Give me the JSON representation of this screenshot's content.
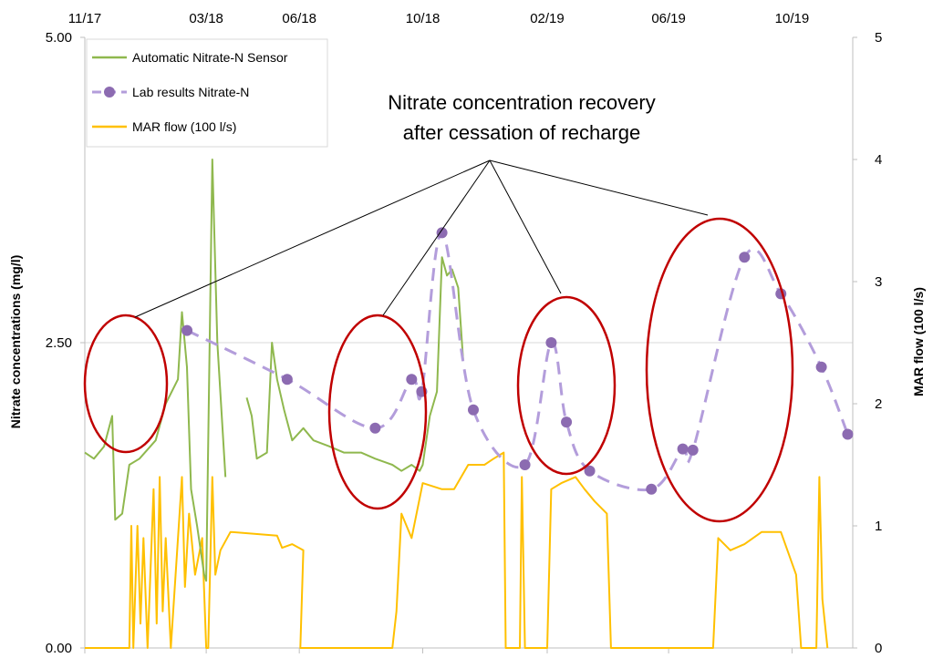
{
  "chart_data": {
    "type": "line",
    "x_axis": {
      "position": "top",
      "scale": "time",
      "range": [
        "2017-11-01",
        "2019-11-30"
      ],
      "tick_labels": [
        {
          "date": "2017-11-01",
          "label": "11/17"
        },
        {
          "date": "2018-03-01",
          "label": "03/18"
        },
        {
          "date": "2018-06-01",
          "label": "06/18"
        },
        {
          "date": "2018-10-01",
          "label": "10/18"
        },
        {
          "date": "2019-02-01",
          "label": "02/19"
        },
        {
          "date": "2019-06-01",
          "label": "06/19"
        },
        {
          "date": "2019-10-01",
          "label": "10/19"
        }
      ]
    },
    "y_left": {
      "label": "Nitrate concentrations (mg/l)",
      "range": [
        0,
        5
      ],
      "ticks": [
        0,
        2.5,
        5
      ],
      "tick_labels": [
        "0.00",
        "2.50",
        "5.00"
      ]
    },
    "y_right": {
      "label": "MAR flow (100 l/s)",
      "range": [
        0,
        5
      ],
      "ticks": [
        0,
        1,
        2,
        3,
        4,
        5
      ],
      "tick_labels": [
        "0",
        "1",
        "2",
        "3",
        "4",
        "5"
      ]
    },
    "gridlines": [
      2.5
    ],
    "legend": {
      "position": "top-left",
      "entries": [
        {
          "label": "Automatic Nitrate-N Sensor",
          "color": "#8fb84e",
          "style": "line"
        },
        {
          "label": "Lab results Nitrate-N",
          "color": "#8c6bb1",
          "style": "dashed-marker"
        },
        {
          "label": "MAR flow (100 l/s)",
          "color": "#ffc000",
          "style": "line"
        }
      ]
    },
    "series": [
      {
        "name": "Lab results Nitrate-N",
        "axis": "left",
        "color": "#8c6bb1",
        "line_color": "#b39ddb",
        "points": [
          {
            "x": "2018-02-10",
            "y": 2.6
          },
          {
            "x": "2018-05-20",
            "y": 2.2
          },
          {
            "x": "2018-08-15",
            "y": 1.8
          },
          {
            "x": "2018-09-20",
            "y": 2.2
          },
          {
            "x": "2018-09-30",
            "y": 2.1
          },
          {
            "x": "2018-10-20",
            "y": 3.4
          },
          {
            "x": "2018-11-20",
            "y": 1.95
          },
          {
            "x": "2019-01-10",
            "y": 1.5
          },
          {
            "x": "2019-02-05",
            "y": 2.5
          },
          {
            "x": "2019-02-20",
            "y": 1.85
          },
          {
            "x": "2019-03-15",
            "y": 1.45
          },
          {
            "x": "2019-05-15",
            "y": 1.3
          },
          {
            "x": "2019-06-15",
            "y": 1.63
          },
          {
            "x": "2019-06-25",
            "y": 1.62
          },
          {
            "x": "2019-08-15",
            "y": 3.2
          },
          {
            "x": "2019-09-20",
            "y": 2.9
          },
          {
            "x": "2019-10-30",
            "y": 2.3
          },
          {
            "x": "2019-11-25",
            "y": 1.75
          }
        ]
      },
      {
        "name": "Automatic Nitrate-N Sensor",
        "axis": "left",
        "color": "#8fb84e",
        "segments": [
          [
            [
              "2017-11-01",
              1.6
            ],
            [
              "2017-11-10",
              1.55
            ],
            [
              "2017-11-20",
              1.65
            ],
            [
              "2017-11-28",
              1.9
            ],
            [
              "2017-12-01",
              1.05
            ],
            [
              "2017-12-08",
              1.1
            ],
            [
              "2017-12-15",
              1.5
            ],
            [
              "2017-12-25",
              1.55
            ],
            [
              "2018-01-10",
              1.7
            ],
            [
              "2018-01-20",
              2.0
            ],
            [
              "2018-02-01",
              2.2
            ],
            [
              "2018-02-05",
              2.75
            ],
            [
              "2018-02-10",
              2.3
            ],
            [
              "2018-02-14",
              1.3
            ],
            [
              "2018-02-20",
              1.0
            ],
            [
              "2018-02-27",
              0.6
            ],
            [
              "2018-03-01",
              0.55
            ],
            [
              "2018-03-07",
              4.0
            ],
            [
              "2018-03-12",
              2.5
            ],
            [
              "2018-03-20",
              1.4
            ]
          ],
          [
            [
              "2018-04-10",
              2.05
            ],
            [
              "2018-04-15",
              1.9
            ],
            [
              "2018-04-20",
              1.55
            ],
            [
              "2018-04-30",
              1.6
            ],
            [
              "2018-05-05",
              2.5
            ],
            [
              "2018-05-10",
              2.2
            ],
            [
              "2018-05-17",
              1.95
            ],
            [
              "2018-05-25",
              1.7
            ],
            [
              "2018-06-05",
              1.8
            ],
            [
              "2018-06-15",
              1.7
            ],
            [
              "2018-07-01",
              1.65
            ],
            [
              "2018-07-15",
              1.6
            ],
            [
              "2018-08-01",
              1.6
            ],
            [
              "2018-08-15",
              1.55
            ],
            [
              "2018-09-01",
              1.5
            ],
            [
              "2018-09-10",
              1.45
            ],
            [
              "2018-09-20",
              1.5
            ],
            [
              "2018-09-28",
              1.45
            ],
            [
              "2018-10-01",
              1.5
            ],
            [
              "2018-10-08",
              1.9
            ],
            [
              "2018-10-15",
              2.1
            ],
            [
              "2018-10-20",
              3.2
            ],
            [
              "2018-10-25",
              3.05
            ],
            [
              "2018-10-30",
              3.1
            ],
            [
              "2018-11-05",
              2.95
            ],
            [
              "2018-11-10",
              2.35
            ]
          ]
        ]
      },
      {
        "name": "MAR flow (100 l/s)",
        "axis": "right",
        "color": "#ffc000",
        "segments": [
          [
            [
              "2017-11-01",
              0
            ],
            [
              "2017-12-15",
              0
            ],
            [
              "2017-12-17",
              1.0
            ],
            [
              "2017-12-19",
              0
            ],
            [
              "2017-12-23",
              1.0
            ],
            [
              "2017-12-26",
              0.2
            ],
            [
              "2017-12-29",
              0.9
            ],
            [
              "2018-01-02",
              0
            ],
            [
              "2018-01-08",
              1.3
            ],
            [
              "2018-01-11",
              0.2
            ],
            [
              "2018-01-14",
              1.4
            ],
            [
              "2018-01-17",
              0.3
            ],
            [
              "2018-01-20",
              0.9
            ],
            [
              "2018-01-25",
              0
            ],
            [
              "2018-02-05",
              1.4
            ],
            [
              "2018-02-08",
              0.5
            ],
            [
              "2018-02-12",
              1.1
            ],
            [
              "2018-02-18",
              0.6
            ],
            [
              "2018-02-25",
              0.9
            ],
            [
              "2018-03-01",
              0
            ],
            [
              "2018-03-03",
              0
            ],
            [
              "2018-03-07",
              1.4
            ],
            [
              "2018-03-10",
              0.6
            ],
            [
              "2018-03-15",
              0.8
            ],
            [
              "2018-03-25",
              0.95
            ],
            [
              "2018-05-10",
              0.92
            ],
            [
              "2018-05-15",
              0.82
            ],
            [
              "2018-05-25",
              0.85
            ],
            [
              "2018-06-05",
              0.8
            ],
            [
              "2018-06-02",
              0
            ],
            [
              "2018-09-01",
              0
            ],
            [
              "2018-09-05",
              0.3
            ],
            [
              "2018-09-10",
              1.1
            ],
            [
              "2018-09-20",
              0.9
            ],
            [
              "2018-10-01",
              1.35
            ],
            [
              "2018-10-20",
              1.3
            ],
            [
              "2018-11-01",
              1.3
            ],
            [
              "2018-11-15",
              1.5
            ],
            [
              "2018-12-01",
              1.5
            ],
            [
              "2018-12-10",
              1.55
            ],
            [
              "2018-12-20",
              1.6
            ],
            [
              "2018-12-22",
              0
            ],
            [
              "2019-01-05",
              0
            ],
            [
              "2019-01-07",
              1.4
            ],
            [
              "2019-01-10",
              0
            ],
            [
              "2019-02-01",
              0
            ],
            [
              "2019-02-05",
              1.3
            ],
            [
              "2019-02-15",
              1.35
            ],
            [
              "2019-03-01",
              1.4
            ],
            [
              "2019-03-10",
              1.3
            ],
            [
              "2019-03-20",
              1.2
            ],
            [
              "2019-04-01",
              1.1
            ],
            [
              "2019-04-05",
              0
            ],
            [
              "2019-07-15",
              0
            ],
            [
              "2019-07-20",
              0.9
            ],
            [
              "2019-08-01",
              0.8
            ],
            [
              "2019-08-15",
              0.85
            ],
            [
              "2019-09-01",
              0.95
            ],
            [
              "2019-09-20",
              0.95
            ],
            [
              "2019-10-05",
              0.6
            ],
            [
              "2019-10-10",
              0
            ],
            [
              "2019-10-25",
              0
            ],
            [
              "2019-10-28",
              1.4
            ],
            [
              "2019-10-31",
              0.4
            ],
            [
              "2019-11-05",
              0
            ]
          ]
        ]
      }
    ],
    "annotations": {
      "text_lines": [
        "Nitrate concentration recovery",
        "after cessation of recharge"
      ],
      "ellipse_color": "#c00000",
      "callout_color": "#000000"
    }
  }
}
